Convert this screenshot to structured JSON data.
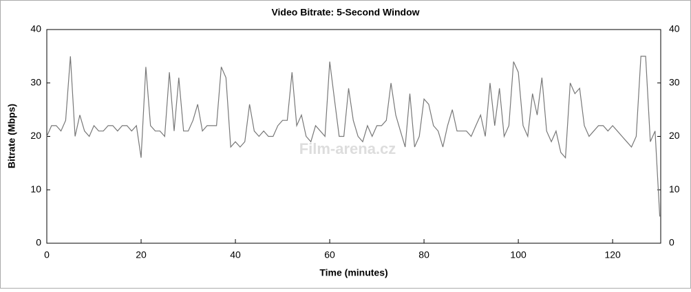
{
  "chart_data": {
    "type": "line",
    "title": "Video Bitrate: 5-Second Window",
    "x_label": "Time (minutes)",
    "y_label": "Bitrate (Mbps)",
    "watermark": "Film-arena.cz",
    "color": "#777777",
    "x": [
      0,
      1,
      2,
      3,
      4,
      5,
      6,
      7,
      8,
      9,
      10,
      11,
      12,
      13,
      14,
      15,
      16,
      17,
      18,
      19,
      20,
      21,
      22,
      23,
      24,
      25,
      26,
      27,
      28,
      29,
      30,
      31,
      32,
      33,
      34,
      35,
      36,
      37,
      38,
      39,
      40,
      41,
      42,
      43,
      44,
      45,
      46,
      47,
      48,
      49,
      50,
      51,
      52,
      53,
      54,
      55,
      56,
      57,
      58,
      59,
      60,
      61,
      62,
      63,
      64,
      65,
      66,
      67,
      68,
      69,
      70,
      71,
      72,
      73,
      74,
      75,
      76,
      77,
      78,
      79,
      80,
      81,
      82,
      83,
      84,
      85,
      86,
      87,
      88,
      89,
      90,
      91,
      92,
      93,
      94,
      95,
      96,
      97,
      98,
      99,
      100,
      101,
      102,
      103,
      104,
      105,
      106,
      107,
      108,
      109,
      110,
      111,
      112,
      113,
      114,
      115,
      116,
      117,
      118,
      119,
      120,
      121,
      122,
      123,
      124,
      125,
      126,
      127,
      128,
      129,
      130
    ],
    "values": [
      20,
      22,
      22,
      21,
      23,
      35,
      20,
      24,
      21,
      20,
      22,
      21,
      21,
      22,
      22,
      21,
      22,
      22,
      21,
      22,
      16,
      33,
      22,
      21,
      21,
      20,
      32,
      21,
      31,
      21,
      21,
      23,
      26,
      21,
      22,
      22,
      22,
      33,
      31,
      18,
      19,
      18,
      19,
      26,
      21,
      20,
      21,
      20,
      20,
      22,
      23,
      23,
      32,
      22,
      24,
      20,
      19,
      22,
      21,
      20,
      34,
      27,
      20,
      20,
      29,
      23,
      20,
      19,
      22,
      20,
      22,
      22,
      23,
      30,
      24,
      21,
      18,
      28,
      18,
      20,
      27,
      26,
      22,
      21,
      18,
      22,
      25,
      21,
      21,
      21,
      20,
      22,
      24,
      20,
      30,
      22,
      29,
      20,
      22,
      34,
      32,
      22,
      20,
      28,
      24,
      31,
      21,
      19,
      21,
      17,
      16,
      30,
      28,
      29,
      22,
      20,
      21,
      22,
      22,
      21,
      22,
      21,
      20,
      19,
      18,
      20,
      35,
      35,
      19,
      21,
      5
    ],
    "xlim": [
      0,
      130.2
    ],
    "xticks": [
      0,
      20,
      40,
      60,
      80,
      100,
      120
    ],
    "ylim": [
      0,
      40
    ],
    "yticks": [
      0,
      10,
      20,
      30,
      40
    ],
    "y2lim": [
      0,
      40
    ],
    "y2ticks": [
      0,
      10,
      20,
      30,
      40
    ],
    "grid": false
  }
}
